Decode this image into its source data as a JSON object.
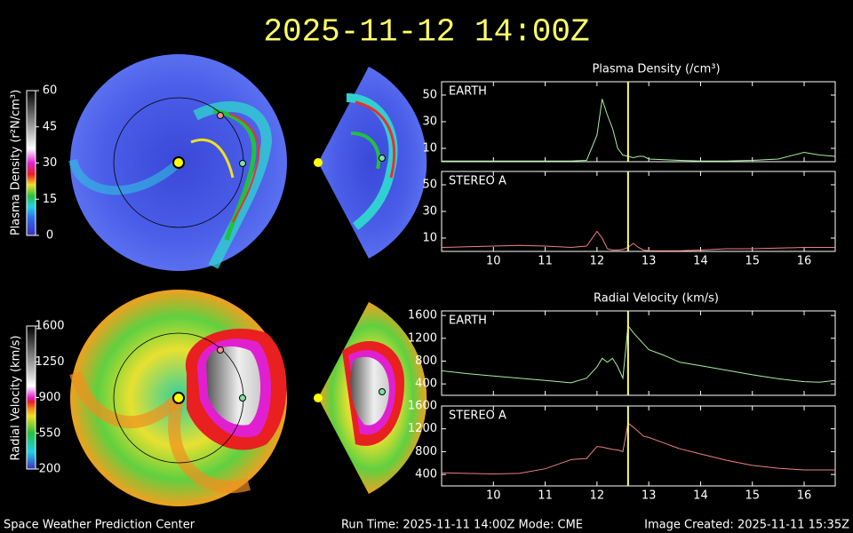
{
  "title": "2025-11-12 14:00Z",
  "footer": {
    "left": "Space Weather Prediction Center",
    "center": "Run Time: 2025-11-11 14:00Z  Mode: CME",
    "right": "Image Created: 2025-11-11 15:35Z"
  },
  "colorbars": [
    {
      "label": "Plasma Density (r²N/cm³)",
      "lim": [
        0,
        60
      ],
      "ticks": [
        0,
        15,
        30,
        45,
        60
      ]
    },
    {
      "label": "Radial Velocity (km/s)",
      "lim": [
        200,
        1600
      ],
      "ticks": [
        200,
        550,
        900,
        1250,
        1600
      ]
    }
  ],
  "chart_data": [
    {
      "type": "line",
      "title": "Plasma Density (/cm³)",
      "x": [
        9.0,
        9.5,
        10,
        10.5,
        11,
        11.5,
        11.8,
        12.0,
        12.1,
        12.2,
        12.3,
        12.4,
        12.5,
        12.6,
        12.7,
        12.8,
        12.9,
        13.0,
        13.3,
        13.6,
        14,
        14.5,
        15,
        15.5,
        16,
        16.3,
        16.6
      ],
      "xlim": [
        9.0,
        16.6
      ],
      "xticks": [
        10,
        11,
        12,
        13,
        14,
        15,
        16
      ],
      "ylim": [
        0,
        60
      ],
      "yticks": [
        10,
        30,
        50
      ],
      "marker_x": 12.6,
      "series": [
        {
          "name": "EARTH",
          "color": "#a8f0a0",
          "values": [
            0.5,
            0.5,
            0.5,
            0.5,
            0.5,
            0.5,
            1,
            20,
            47,
            35,
            25,
            10,
            5,
            4,
            3,
            4,
            4,
            2,
            1.5,
            1,
            0.5,
            0.5,
            1,
            2,
            7,
            5,
            4
          ]
        }
      ]
    },
    {
      "type": "line",
      "x": [
        9.0,
        9.5,
        10,
        10.5,
        11,
        11.5,
        11.8,
        12.0,
        12.1,
        12.2,
        12.3,
        12.4,
        12.5,
        12.6,
        12.7,
        12.8,
        12.9,
        13.0,
        13.3,
        13.6,
        14,
        14.5,
        15,
        15.5,
        16,
        16.3,
        16.6
      ],
      "xlim": [
        9.0,
        16.6
      ],
      "xticks": [
        10,
        11,
        12,
        13,
        14,
        15,
        16
      ],
      "ylim": [
        0,
        60
      ],
      "yticks": [
        10,
        30,
        50
      ],
      "marker_x": 12.6,
      "series": [
        {
          "name": "STEREO A",
          "color": "#f08080",
          "values": [
            3,
            3.5,
            4,
            4.5,
            4,
            3,
            4,
            15,
            10,
            2,
            1,
            1,
            1.5,
            3,
            6,
            3,
            1,
            0.5,
            0.5,
            0.5,
            1,
            2,
            2,
            2.5,
            3,
            3,
            3
          ]
        }
      ]
    },
    {
      "type": "line",
      "title": "Radial Velocity (km/s)",
      "x": [
        9.0,
        9.5,
        10,
        10.5,
        11,
        11.5,
        11.8,
        12.0,
        12.1,
        12.2,
        12.3,
        12.4,
        12.5,
        12.6,
        12.7,
        12.8,
        12.9,
        13.0,
        13.3,
        13.6,
        14,
        14.5,
        15,
        15.5,
        16,
        16.3,
        16.6
      ],
      "xlim": [
        9.0,
        16.6
      ],
      "xticks": [
        10,
        11,
        12,
        13,
        14,
        15,
        16
      ],
      "ylim": [
        200,
        1680
      ],
      "yticks": [
        400,
        800,
        1200,
        1600
      ],
      "marker_x": 12.6,
      "series": [
        {
          "name": "EARTH",
          "color": "#a8f0a0",
          "values": [
            630,
            580,
            540,
            500,
            460,
            420,
            500,
            700,
            850,
            780,
            850,
            700,
            500,
            1420,
            1300,
            1200,
            1100,
            1000,
            900,
            780,
            720,
            640,
            560,
            490,
            440,
            430,
            460
          ]
        }
      ]
    },
    {
      "type": "line",
      "x": [
        9.0,
        9.5,
        10,
        10.5,
        11,
        11.5,
        11.8,
        12.0,
        12.1,
        12.2,
        12.3,
        12.4,
        12.5,
        12.6,
        12.7,
        12.8,
        12.9,
        13.0,
        13.3,
        13.6,
        14,
        14.5,
        15,
        15.5,
        16,
        16.3,
        16.6
      ],
      "xlim": [
        9.0,
        16.6
      ],
      "xticks": [
        10,
        11,
        12,
        13,
        14,
        15,
        16
      ],
      "ylim": [
        200,
        1600
      ],
      "yticks": [
        400,
        800,
        1200,
        1600
      ],
      "marker_x": 12.6,
      "series": [
        {
          "name": "STEREO A",
          "color": "#f08080",
          "values": [
            430,
            420,
            410,
            420,
            500,
            660,
            680,
            890,
            880,
            860,
            840,
            830,
            800,
            1300,
            1230,
            1150,
            1070,
            1050,
            950,
            850,
            760,
            650,
            560,
            510,
            480,
            480,
            480
          ]
        }
      ]
    }
  ]
}
